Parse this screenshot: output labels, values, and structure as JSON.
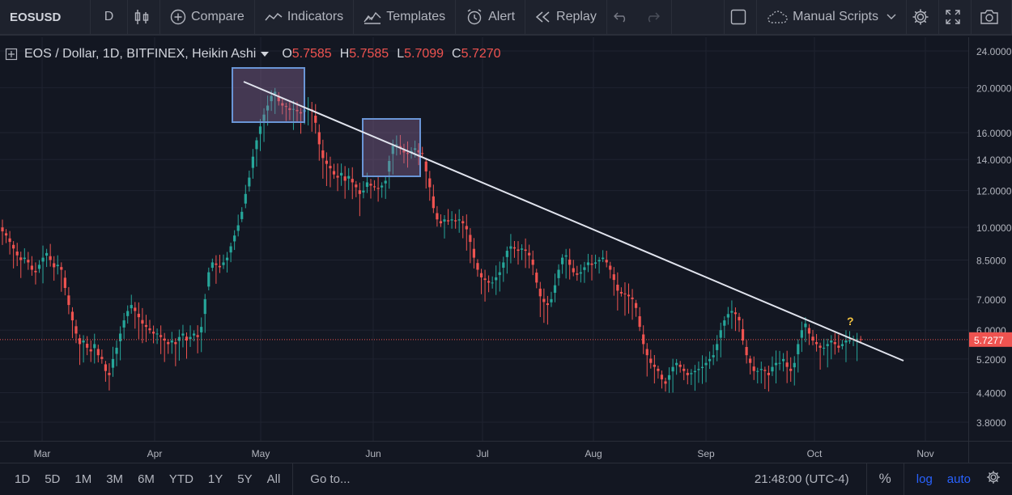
{
  "toolbar": {
    "symbol": "EOSUSD",
    "interval": "D",
    "compare": "Compare",
    "indicators": "Indicators",
    "templates": "Templates",
    "alert": "Alert",
    "replay": "Replay",
    "manual_scripts": "Manual Scripts"
  },
  "legend": {
    "title": "EOS / Dollar, 1D, BITFINEX, Heikin Ashi",
    "open_label": "O",
    "open": "5.7585",
    "high_label": "H",
    "high": "5.7585",
    "low_label": "L",
    "low": "5.7099",
    "close_label": "C",
    "close": "5.7270"
  },
  "bottom": {
    "ranges": [
      "1D",
      "5D",
      "1M",
      "3M",
      "6M",
      "YTD",
      "1Y",
      "5Y",
      "All"
    ],
    "goto": "Go to...",
    "time": "21:48:00 (UTC-4)",
    "percent": "%",
    "log": "log",
    "auto": "auto"
  },
  "colors": {
    "background": "#131722",
    "up": "#26a69a",
    "down": "#ef5350",
    "trendline": "#e1e4ee",
    "box": "#6a95d6",
    "accent": "#2962ff"
  },
  "chart_data": {
    "type": "candlestick",
    "scale": "log",
    "price_axis_labels": [
      "24.0000",
      "20.0000",
      "16.0000",
      "14.0000",
      "12.0000",
      "10.0000",
      "8.5000",
      "7.0000",
      "6.0000",
      "5.2000",
      "4.4000",
      "3.8000"
    ],
    "x_labels": [
      "Mar",
      "Apr",
      "May",
      "Jun",
      "Jul",
      "Aug",
      "Sep",
      "Oct",
      "Nov"
    ],
    "last_price_label": "5.7277",
    "last_price": 5.7277,
    "annotation": "?",
    "daily_closes": [
      9.8,
      9.6,
      9.3,
      9.0,
      8.7,
      8.5,
      8.6,
      8.4,
      8.1,
      8.0,
      8.3,
      8.6,
      8.8,
      8.5,
      8.2,
      8.3,
      8.1,
      7.4,
      6.8,
      6.3,
      5.9,
      5.6,
      5.7,
      5.5,
      5.4,
      5.6,
      5.3,
      5.2,
      4.9,
      4.8,
      5.2,
      5.5,
      5.9,
      6.3,
      6.6,
      6.8,
      6.6,
      6.4,
      6.2,
      6.1,
      6.0,
      5.9,
      5.9,
      5.8,
      5.7,
      5.6,
      5.7,
      5.6,
      5.8,
      5.9,
      5.7,
      5.8,
      5.9,
      5.8,
      6.1,
      7.0,
      8.0,
      8.4,
      8.3,
      8.2,
      8.4,
      8.6,
      9.1,
      9.6,
      10.1,
      10.8,
      11.8,
      12.8,
      14.2,
      15.4,
      16.5,
      17.5,
      18.3,
      19.2,
      19.6,
      18.7,
      18.3,
      18.2,
      17.9,
      18.0,
      17.8,
      17.6,
      17.9,
      18.0,
      17.9,
      16.8,
      15.1,
      14.1,
      13.7,
      13.4,
      13.0,
      12.8,
      13.1,
      12.6,
      12.9,
      12.5,
      12.2,
      11.8,
      12.0,
      12.5,
      12.3,
      12.2,
      12.1,
      12.3,
      12.6,
      13.9,
      15.0,
      15.1,
      14.8,
      14.5,
      14.4,
      14.6,
      14.8,
      14.5,
      14.4,
      13.2,
      12.2,
      11.0,
      10.4,
      10.2,
      10.4,
      10.3,
      10.4,
      10.3,
      10.4,
      10.2,
      9.9,
      9.3,
      8.6,
      8.1,
      7.8,
      7.7,
      7.6,
      7.6,
      7.8,
      8.0,
      8.4,
      8.9,
      9.1,
      9.0,
      8.9,
      9.0,
      8.9,
      8.7,
      8.3,
      7.6,
      7.1,
      6.9,
      6.8,
      7.0,
      7.5,
      8.1,
      8.6,
      8.7,
      8.3,
      8.0,
      7.9,
      8.0,
      8.2,
      8.4,
      8.3,
      8.4,
      8.5,
      8.6,
      8.4,
      8.1,
      7.7,
      7.3,
      7.2,
      7.2,
      7.1,
      7.0,
      6.7,
      6.1,
      5.6,
      5.3,
      5.1,
      5.0,
      4.9,
      4.7,
      4.6,
      4.8,
      5.0,
      5.1,
      5.0,
      4.9,
      4.8,
      4.85,
      4.9,
      4.95,
      5.0,
      5.1,
      5.2,
      5.3,
      5.6,
      6.0,
      6.3,
      6.5,
      6.6,
      6.5,
      6.3,
      5.7,
      5.3,
      5.1,
      4.9,
      4.9,
      4.95,
      4.9,
      4.8,
      5.0,
      5.1,
      5.1,
      5.2,
      5.0,
      4.9,
      5.1,
      5.6,
      6.0,
      6.2,
      5.9,
      5.7,
      5.6,
      5.5,
      5.5,
      5.6,
      5.7,
      5.6,
      5.5,
      5.6,
      5.7,
      5.7,
      5.75,
      5.75,
      5.73
    ]
  }
}
